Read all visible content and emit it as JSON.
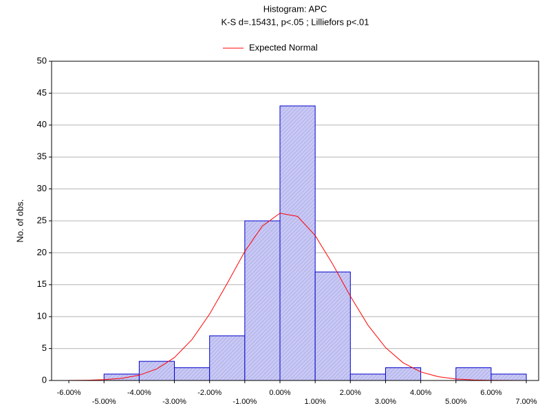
{
  "chart_data": {
    "type": "histogram",
    "title": "Histogram: APC",
    "subtitle": "K-S d=.15431, p<.05 ; Lilliefors p<.01",
    "y_label": "No. of obs.",
    "bins": [
      -5,
      -4,
      -3,
      -2,
      -1,
      0,
      1,
      2,
      3,
      4,
      5,
      6,
      7
    ],
    "values": [
      1,
      3,
      2,
      7,
      25,
      43,
      17,
      1,
      2,
      0,
      2,
      1
    ],
    "color": "#c8c8f4",
    "edge_color": "#0000cc",
    "series": [
      {
        "name": "Expected Normal",
        "color": "#ff0000",
        "x": [
          -6,
          -5.5,
          -5,
          -4.5,
          -4,
          -3.5,
          -3,
          -2.5,
          -2,
          -1.5,
          -1,
          -0.5,
          0,
          0.5,
          1,
          1.5,
          2,
          2.5,
          3,
          3.5,
          4,
          4.5,
          5,
          5.5,
          6,
          6.5,
          7
        ],
        "values": [
          0.01,
          0.04,
          0.13,
          0.34,
          0.83,
          1.81,
          3.59,
          6.42,
          10.4,
          15.2,
          20.2,
          24.2,
          26.2,
          25.7,
          22.7,
          18.2,
          13.2,
          8.67,
          5.15,
          2.77,
          1.34,
          0.59,
          0.23,
          0.08,
          0.03,
          0.01,
          0
        ]
      }
    ],
    "xlim": [
      -6.49,
      7.35
    ],
    "ylim": [
      0,
      50
    ],
    "xticks": [
      {
        "value": -6,
        "label": "-6.00%"
      },
      {
        "value": -5,
        "label": "-5.00%"
      },
      {
        "value": -4,
        "label": "-4.00%"
      },
      {
        "value": -3,
        "label": "-3.00%"
      },
      {
        "value": -2,
        "label": "-2.00%"
      },
      {
        "value": -1,
        "label": "-1.00%"
      },
      {
        "value": 0,
        "label": "0.00%"
      },
      {
        "value": 1,
        "label": "1.00%"
      },
      {
        "value": 2,
        "label": "2.00%"
      },
      {
        "value": 3,
        "label": "3.00%"
      },
      {
        "value": 4,
        "label": "4.00%"
      },
      {
        "value": 5,
        "label": "5.00%"
      },
      {
        "value": 6,
        "label": "6.00%"
      },
      {
        "value": 7,
        "label": "7.00%"
      }
    ],
    "yticks": [
      0,
      5,
      10,
      15,
      20,
      25,
      30,
      35,
      40,
      45,
      50
    ],
    "grid": true
  }
}
